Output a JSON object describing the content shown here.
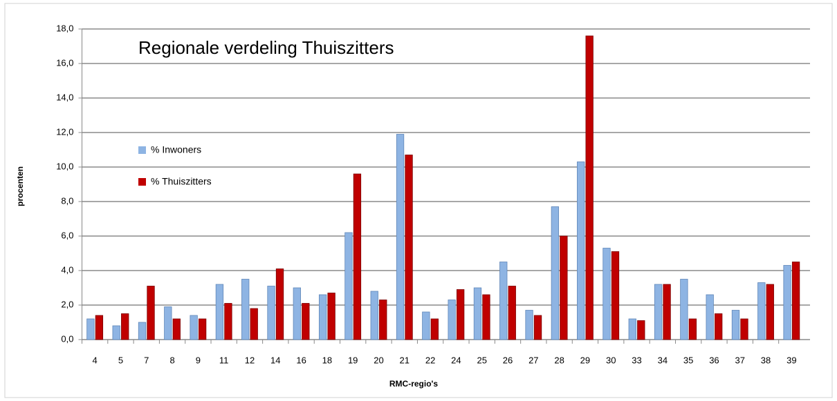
{
  "chart_data": {
    "type": "bar",
    "title": "Regionale verdeling Thuiszitters",
    "x_label": "RMC-regio's",
    "y_label": "procenten",
    "categories": [
      "4",
      "5",
      "7",
      "8",
      "9",
      "11",
      "12",
      "14",
      "16",
      "18",
      "19",
      "20",
      "21",
      "22",
      "24",
      "25",
      "26",
      "27",
      "28",
      "29",
      "30",
      "33",
      "34",
      "35",
      "36",
      "37",
      "38",
      "39"
    ],
    "series": [
      {
        "name": "% Inwoners",
        "color": "#8eb4e3",
        "values": [
          1.2,
          0.8,
          1.0,
          1.9,
          1.4,
          3.2,
          3.5,
          3.1,
          3.0,
          2.6,
          6.2,
          2.8,
          11.9,
          1.6,
          2.3,
          3.0,
          4.5,
          1.7,
          7.7,
          10.3,
          5.3,
          1.2,
          3.2,
          3.5,
          2.6,
          1.7,
          3.3,
          4.3
        ]
      },
      {
        "name": "% Thuiszitters",
        "color": "#c00000",
        "values": [
          1.4,
          1.5,
          3.1,
          1.2,
          1.2,
          2.1,
          1.8,
          4.1,
          2.1,
          2.7,
          9.6,
          2.3,
          10.7,
          1.2,
          2.9,
          2.6,
          3.1,
          1.4,
          6.0,
          17.6,
          5.1,
          1.1,
          3.2,
          1.2,
          1.5,
          1.2,
          3.2,
          4.5
        ]
      }
    ],
    "ylim": [
      0,
      18
    ],
    "yticks": [
      {
        "value": 0,
        "label": "0,0"
      },
      {
        "value": 2,
        "label": "2,0"
      },
      {
        "value": 4,
        "label": "4,0"
      },
      {
        "value": 6,
        "label": "6,0"
      },
      {
        "value": 8,
        "label": "8,0"
      },
      {
        "value": 10,
        "label": "10,0"
      },
      {
        "value": 12,
        "label": "12,0"
      },
      {
        "value": 14,
        "label": "14,0"
      },
      {
        "value": 16,
        "label": "16,0"
      },
      {
        "value": 18,
        "label": "18,0"
      }
    ],
    "grid": true
  }
}
